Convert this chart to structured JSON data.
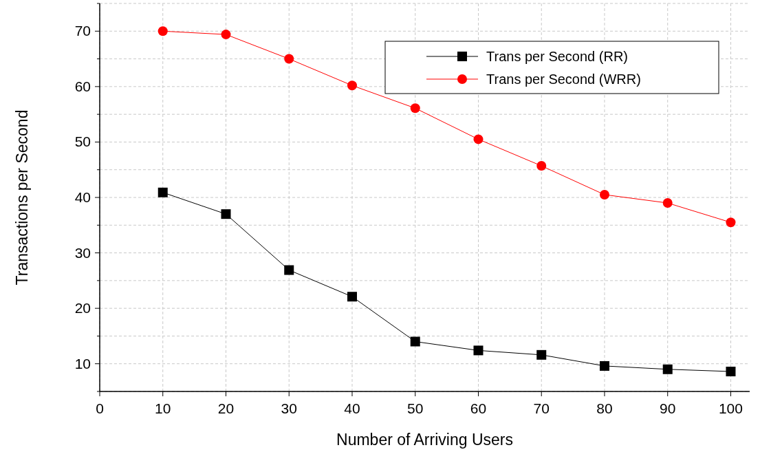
{
  "chart_data": {
    "type": "line",
    "xlabel": "Number of Arriving Users",
    "ylabel": "Transactions per Second",
    "x": [
      10,
      20,
      30,
      40,
      50,
      60,
      70,
      80,
      90,
      100
    ],
    "series": [
      {
        "name": "Trans per Second (RR)",
        "color": "#000000",
        "marker": "square",
        "values": [
          40.9,
          37.0,
          26.9,
          22.1,
          14.0,
          12.4,
          11.6,
          9.6,
          9.0,
          8.6
        ]
      },
      {
        "name": "Trans per Second (WRR)",
        "color": "#ff0000",
        "marker": "circle",
        "values": [
          70.0,
          69.4,
          65.0,
          60.2,
          56.1,
          50.5,
          45.7,
          40.5,
          39.0,
          35.5
        ]
      }
    ],
    "xlim": [
      0,
      103
    ],
    "xticks": [
      0,
      10,
      20,
      30,
      40,
      50,
      60,
      70,
      80,
      90,
      100
    ],
    "ylim": [
      5,
      75
    ],
    "yticks": [
      {
        "value": 5,
        "label": null
      },
      10,
      {
        "value": 15,
        "label": null
      },
      20,
      {
        "value": 25,
        "label": null
      },
      30,
      {
        "value": 35,
        "label": null
      },
      40,
      {
        "value": 45,
        "label": null
      },
      50,
      {
        "value": 55,
        "label": null
      },
      60,
      {
        "value": 65,
        "label": null
      },
      70,
      {
        "value": 75,
        "label": null
      }
    ],
    "grid": true,
    "legend": "top right",
    "line_style": "solid"
  }
}
